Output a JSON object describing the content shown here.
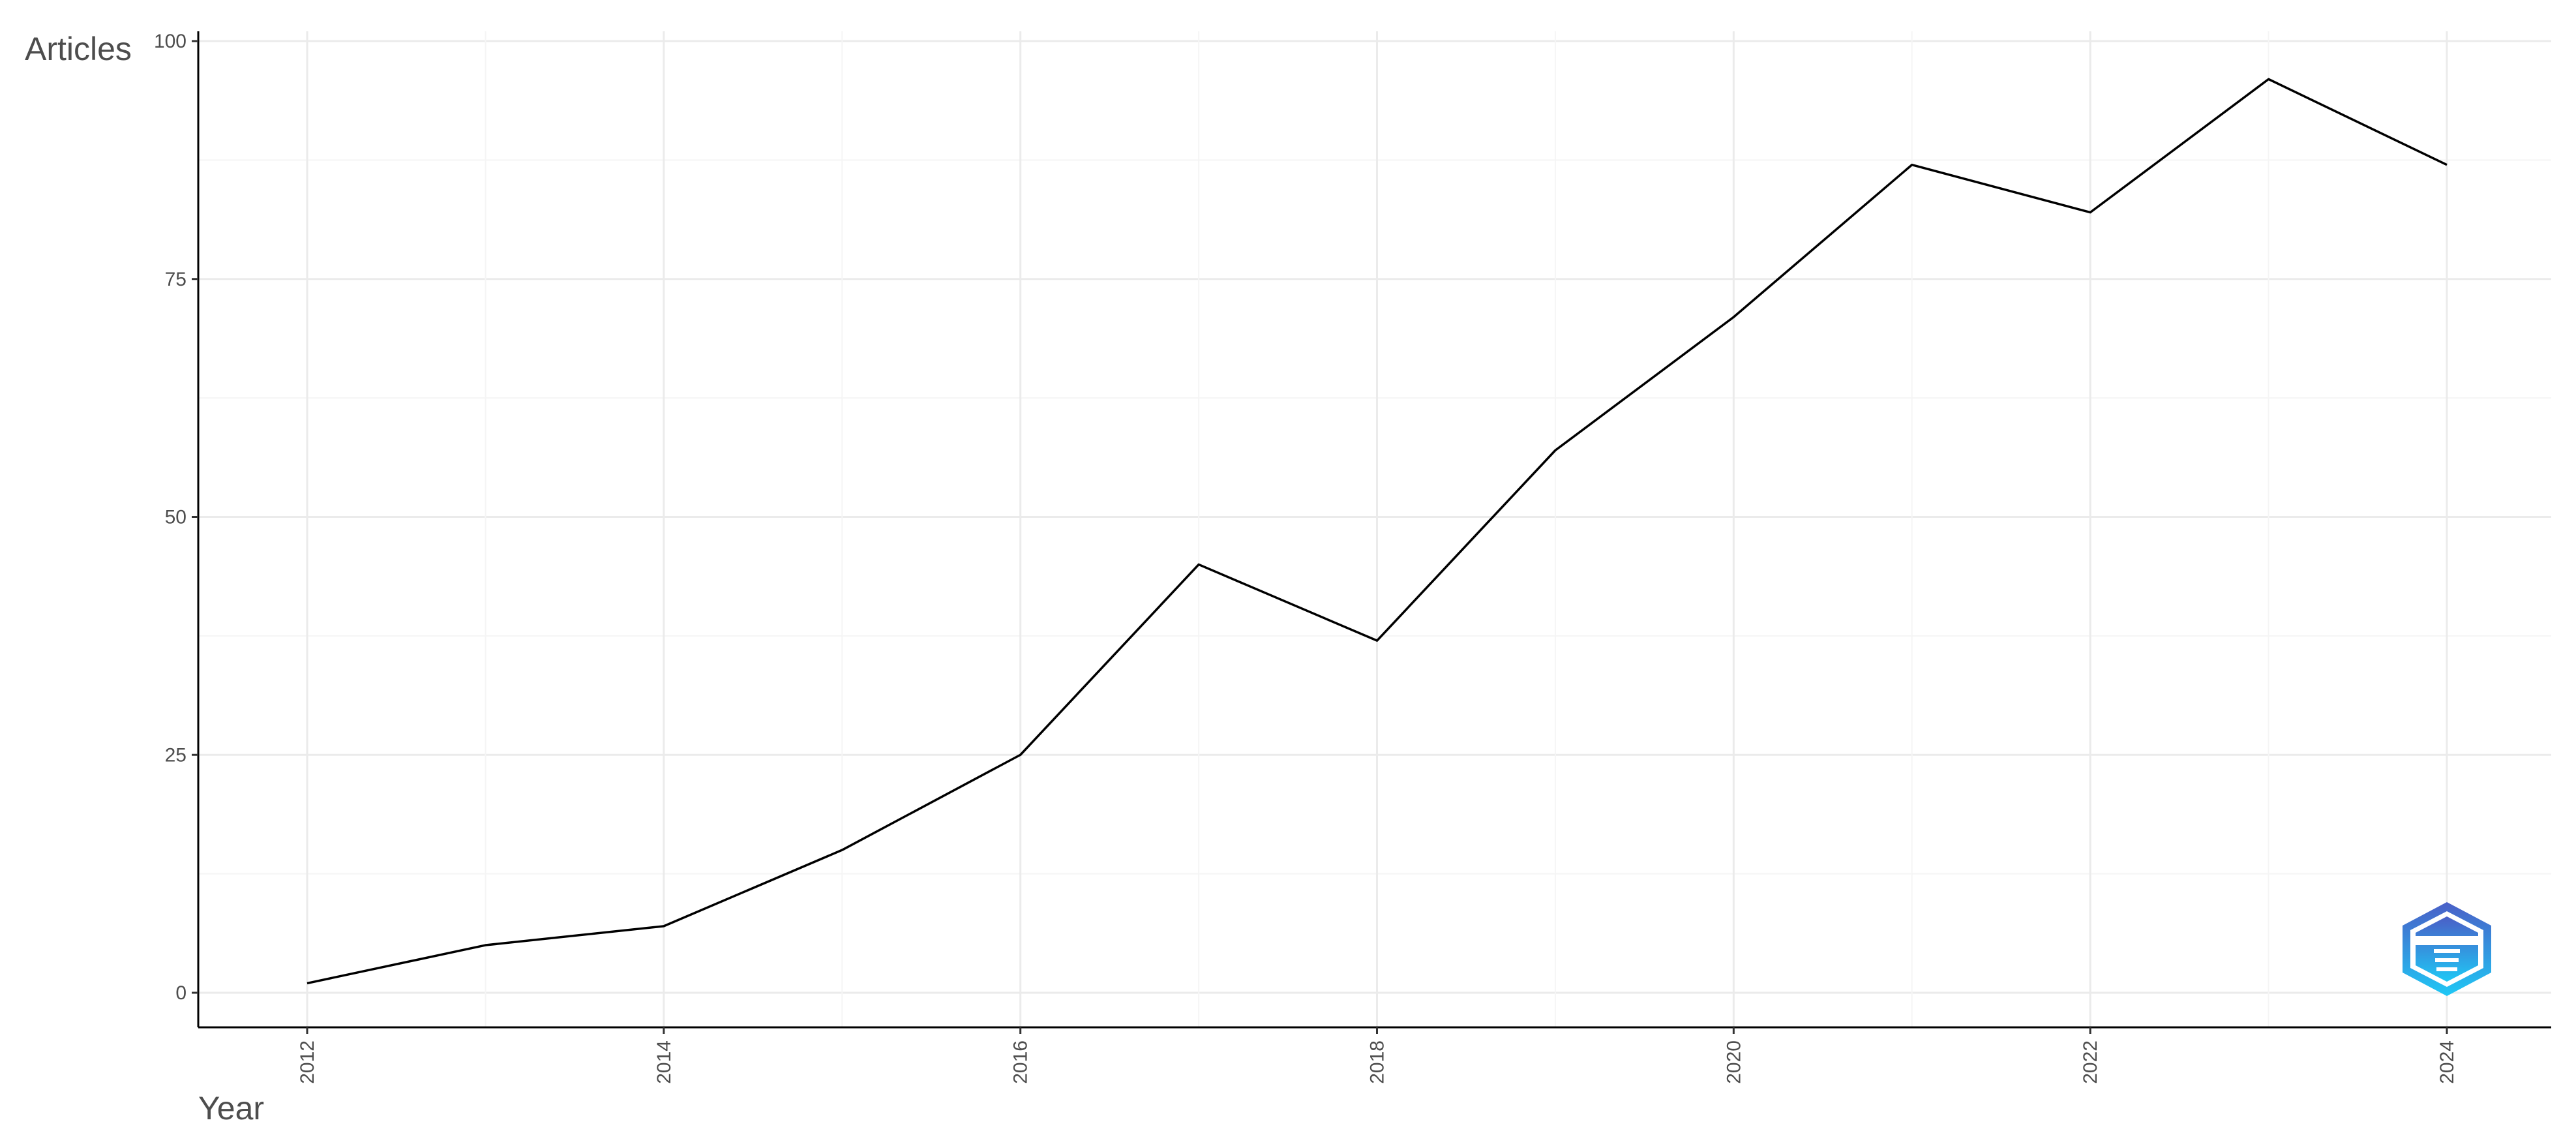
{
  "chart_data": {
    "type": "line",
    "title": "",
    "xlabel": "Year",
    "ylabel": "Articles",
    "x": [
      2012,
      2013,
      2014,
      2015,
      2016,
      2017,
      2018,
      2019,
      2020,
      2021,
      2022,
      2023,
      2024
    ],
    "series": [
      {
        "values": [
          1,
          5,
          7,
          15,
          25,
          45,
          37,
          57,
          71,
          87,
          82,
          96,
          87
        ],
        "color": "#000000"
      }
    ],
    "xlim": [
      2011.4,
      2024.6
    ],
    "ylim": [
      -3.8,
      100
    ],
    "x_ticks": [
      "2012",
      "2014",
      "2016",
      "2018",
      "2020",
      "2022",
      "2024"
    ],
    "y_ticks": [
      "0",
      "25",
      "50",
      "75",
      "100"
    ],
    "grid": true,
    "legend": "none",
    "watermark": {
      "text": "BIBLIOMETRIX",
      "icon": "bibliometrix-logo",
      "colors": [
        "#4a5fc7",
        "#1fc8f5"
      ]
    }
  }
}
